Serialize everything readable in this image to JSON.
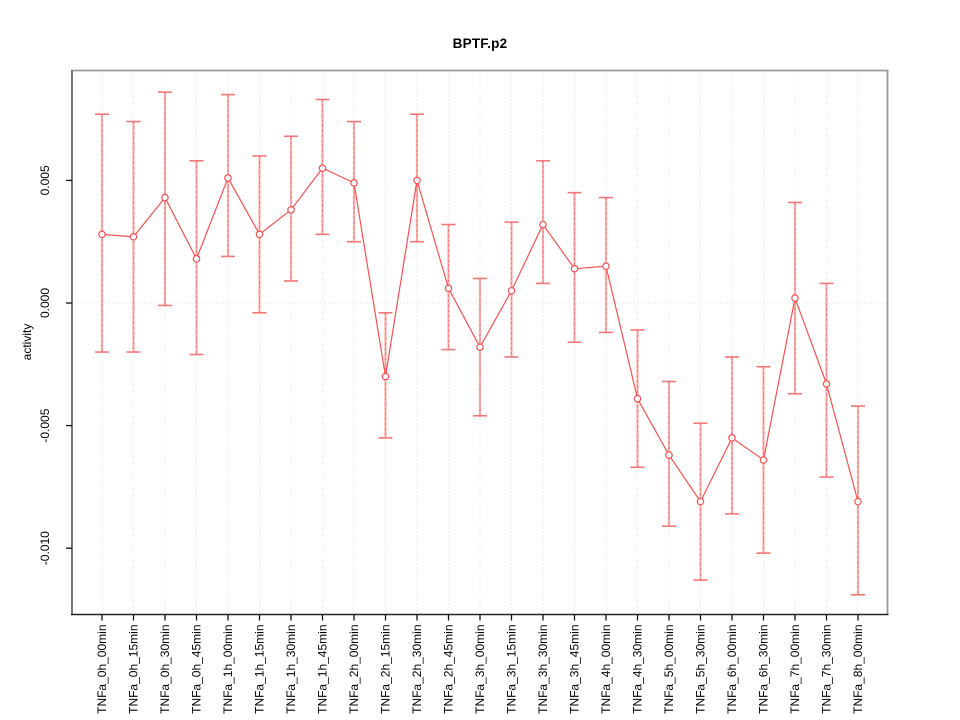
{
  "page": {
    "background": "#ffffff"
  },
  "chart_data": {
    "type": "line",
    "title": "BPTF.p2",
    "xlabel": "",
    "ylabel": "activity",
    "legend": "none",
    "grid": {
      "vertical_dotted_per_category": true,
      "horizontal_dotted_at_zero": true
    },
    "ylim": [
      -0.0127,
      0.0095
    ],
    "yticks": [
      0.005,
      0.0,
      -0.005,
      -0.01
    ],
    "ytick_labels": [
      "0.005",
      "0.000",
      "-0.005",
      "-0.010"
    ],
    "categories": [
      "TNFa_0h_00min",
      "TNFa_0h_15min",
      "TNFa_0h_30min",
      "TNFa_0h_45min",
      "TNFa_1h_00min",
      "TNFa_1h_15min",
      "TNFa_1h_30min",
      "TNFa_1h_45min",
      "TNFa_2h_00min",
      "TNFa_2h_15min",
      "TNFa_2h_30min",
      "TNFa_2h_45min",
      "TNFa_3h_00min",
      "TNFa_3h_15min",
      "TNFa_3h_30min",
      "TNFa_3h_45min",
      "TNFa_4h_00min",
      "TNFa_4h_30min",
      "TNFa_5h_00min",
      "TNFa_5h_30min",
      "TNFa_6h_00min",
      "TNFa_6h_30min",
      "TNFa_7h_00min",
      "TNFa_7h_30min",
      "TNFa_8h_00min"
    ],
    "series": [
      {
        "name": "activity",
        "marker": "open-circle",
        "values": [
          0.0028,
          0.0027,
          0.0043,
          0.0018,
          0.0051,
          0.0028,
          0.0038,
          0.0055,
          0.0049,
          -0.003,
          0.005,
          0.0006,
          -0.0018,
          0.0005,
          0.0032,
          0.0014,
          0.0015,
          -0.0039,
          -0.0062,
          -0.0081,
          -0.0055,
          -0.0064,
          0.0002,
          -0.0033,
          -0.0081
        ],
        "upper": [
          0.0077,
          0.0074,
          0.0086,
          0.0058,
          0.0085,
          0.006,
          0.0068,
          0.0083,
          0.0074,
          -0.0004,
          0.0077,
          0.0032,
          0.001,
          0.0033,
          0.0058,
          0.0045,
          0.0043,
          -0.0011,
          -0.0032,
          -0.0049,
          -0.0022,
          -0.0026,
          0.0041,
          0.0008,
          -0.0042
        ],
        "lower": [
          -0.002,
          -0.002,
          -0.0001,
          -0.0021,
          0.0019,
          -0.0004,
          0.0009,
          0.0028,
          0.0025,
          -0.0055,
          0.0025,
          -0.0019,
          -0.0046,
          -0.0022,
          0.0008,
          -0.0016,
          -0.0012,
          -0.0067,
          -0.0091,
          -0.0113,
          -0.0086,
          -0.0102,
          -0.0037,
          -0.0071,
          -0.0119
        ]
      }
    ],
    "colors": {
      "line": "#f25252",
      "marker_stroke": "#f25252",
      "marker_fill": "#ffffff",
      "error_bar": "#f8adad",
      "error_bar_core": "#ef6a6a",
      "error_cap": "#f47676",
      "grid": "#dcdcdc",
      "frame_top": "#9a9a9a",
      "frame_right": "#9a9a9a",
      "frame_left": "#666666",
      "frame_bottom": "#262626",
      "tick": "#111111",
      "text": "#000000"
    }
  }
}
